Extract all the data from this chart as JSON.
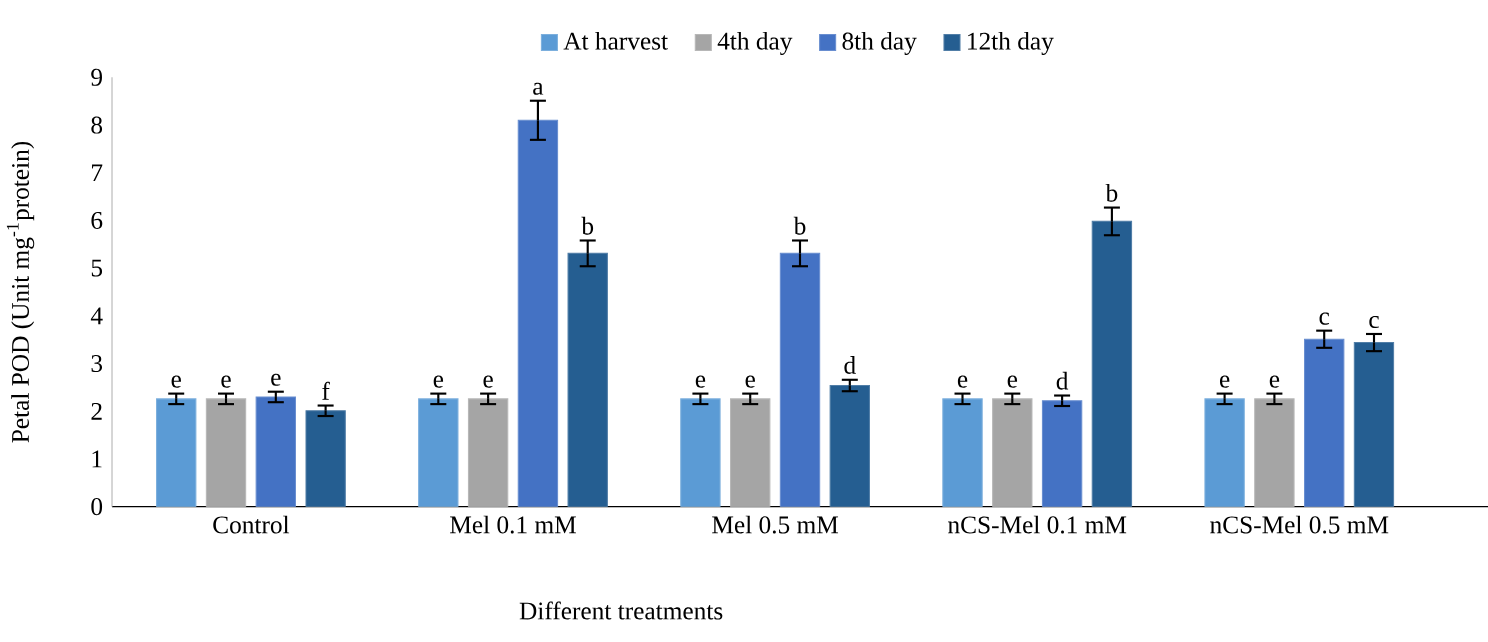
{
  "chart_data": {
    "type": "bar",
    "xlabel": "Different treatments",
    "ylabel": "Petal POD (Unit mg$^{-1}$protein)",
    "categories": [
      "Control",
      "Mel 0.1 mM",
      "Mel 0.5 mM",
      "nCS-Mel 0.1 mM",
      "nCS-Mel 0.5 mM"
    ],
    "ylim": [
      0,
      9
    ],
    "yticks": [
      0,
      1,
      2,
      3,
      4,
      5,
      6,
      7,
      8,
      9
    ],
    "grid": false,
    "legend": "top",
    "series": [
      {
        "name": "At harvest",
        "color": "#5b9bd5",
        "values": [
          2.26,
          2.26,
          2.26,
          2.26,
          2.26
        ],
        "errors": [
          0.11,
          0.11,
          0.11,
          0.11,
          0.11
        ],
        "value_labels": [
          "e",
          "e",
          "e",
          "e",
          "e"
        ]
      },
      {
        "name": "4th day",
        "color": "#a5a5a5",
        "values": [
          2.26,
          2.26,
          2.26,
          2.26,
          2.26
        ],
        "errors": [
          0.11,
          0.11,
          0.11,
          0.11,
          0.11
        ],
        "value_labels": [
          "e",
          "e",
          "e",
          "e",
          "e"
        ]
      },
      {
        "name": "8th day",
        "color": "#4472c4",
        "values": [
          2.3,
          8.1,
          5.31,
          2.22,
          3.51
        ],
        "errors": [
          0.11,
          0.41,
          0.27,
          0.11,
          0.18
        ],
        "value_labels": [
          "e",
          "a",
          "b",
          "d",
          "c"
        ]
      },
      {
        "name": "12th day",
        "color": "#255e91",
        "values": [
          2.01,
          5.31,
          2.54,
          5.98,
          3.44
        ],
        "errors": [
          0.11,
          0.27,
          0.12,
          0.29,
          0.18
        ],
        "value_labels": [
          "f",
          "b",
          "d",
          "b",
          "c"
        ]
      }
    ]
  }
}
